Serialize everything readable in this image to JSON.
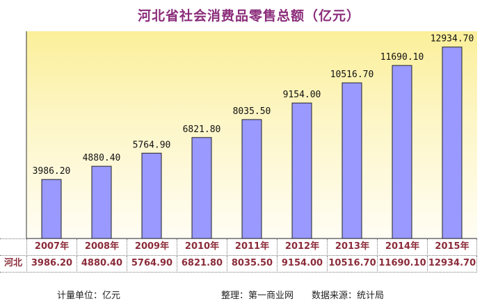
{
  "title": "河北省社会消费品零售总额（亿元）",
  "chart_data": {
    "type": "bar",
    "title": "河北省社会消费品零售总额（亿元）",
    "categories": [
      "2007年",
      "2008年",
      "2009年",
      "2010年",
      "2011年",
      "2012年",
      "2013年",
      "2014年",
      "2015年"
    ],
    "series": [
      {
        "name": "河北",
        "values": [
          3986.2,
          4880.4,
          5764.9,
          6821.8,
          8035.5,
          9154.0,
          10516.7,
          11690.1,
          12934.7
        ]
      }
    ],
    "value_labels": [
      "3986.20",
      "4880.40",
      "5764.90",
      "6821.80",
      "8035.50",
      "9154.00",
      "10516.70",
      "11690.10",
      "12934.70"
    ],
    "ylim": [
      0,
      14000
    ],
    "grid": false,
    "bar_color": "#9999FF",
    "bar_border_color": "#222222",
    "plot_background": "#FBEF9A"
  },
  "table": {
    "row_header": "河北"
  },
  "footer": {
    "unit": "计量单位：亿元",
    "source": "整理：第一商业网　　数据来源：统计局"
  }
}
